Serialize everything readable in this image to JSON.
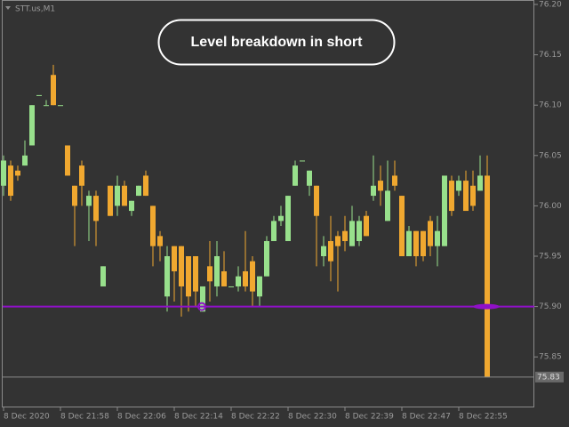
{
  "chart_data": {
    "type": "candlestick",
    "title": "STT.us,M1",
    "annotation": "Level breakdown in short",
    "categories": [
      "8 Dec 2020",
      null,
      null,
      null,
      null,
      null,
      null,
      null,
      "8 Dec 21:58",
      null,
      null,
      null,
      null,
      null,
      null,
      null,
      "8 Dec 22:06",
      null,
      null,
      null,
      null,
      null,
      null,
      null,
      "8 Dec 22:14",
      null,
      null,
      null,
      null,
      null,
      null,
      null,
      "8 Dec 22:22",
      null,
      null,
      null,
      null,
      null,
      null,
      null,
      "8 Dec 22:30",
      null,
      null,
      null,
      null,
      null,
      null,
      null,
      "8 Dec 22:39",
      null,
      null,
      null,
      null,
      null,
      null,
      null,
      "8 Dec 22:47",
      null,
      null,
      null,
      null,
      null,
      null,
      null,
      "8 Dec 22:55",
      null,
      null,
      null,
      null
    ],
    "open": [
      76.02,
      76.04,
      76.035,
      76.04,
      76.06,
      76.11,
      76.1,
      76.13,
      76.1,
      76.06,
      76.02,
      76.04,
      76.0,
      76.01,
      75.92,
      76.02,
      76.0,
      76.02,
      75.995,
      76.01,
      76.03,
      76.0,
      75.97,
      75.91,
      75.96,
      75.96,
      75.95,
      75.95,
      75.895,
      75.94,
      75.92,
      75.935,
      75.92,
      75.92,
      75.935,
      75.945,
      75.91,
      75.93,
      75.965,
      75.985,
      75.965,
      76.02,
      76.045,
      76.02,
      76.02,
      75.95,
      75.965,
      75.97,
      75.975,
      75.96,
      75.965,
      75.99,
      76.01,
      76.025,
      75.985,
      76.03,
      76.01,
      75.95,
      75.975,
      75.975,
      75.985,
      75.96,
      75.96,
      76.025,
      76.015,
      76.025,
      76.02,
      76.015,
      76.03
    ],
    "high": [
      76.05,
      76.045,
      76.04,
      76.065,
      76.1,
      76.11,
      76.105,
      76.14,
      76.1,
      76.06,
      76.02,
      76.045,
      76.015,
      76.015,
      75.94,
      76.02,
      76.03,
      76.025,
      76.005,
      76.02,
      76.035,
      76.0,
      75.975,
      75.96,
      75.96,
      75.96,
      75.95,
      75.95,
      75.92,
      75.965,
      75.965,
      75.955,
      75.92,
      75.94,
      75.975,
      75.95,
      75.93,
      75.97,
      75.99,
      76.0,
      76.01,
      76.045,
      76.045,
      76.035,
      76.02,
      75.97,
      75.99,
      75.975,
      75.99,
      76.0,
      75.99,
      75.995,
      76.05,
      76.04,
      76.045,
      76.045,
      76.01,
      75.98,
      75.975,
      75.975,
      75.99,
      75.99,
      76.03,
      76.03,
      76.03,
      76.035,
      76.035,
      76.05,
      76.05
    ],
    "low": [
      76.01,
      76.005,
      76.025,
      76.04,
      76.06,
      76.11,
      76.1,
      76.1,
      76.1,
      76.03,
      75.96,
      76.0,
      75.965,
      75.96,
      75.92,
      75.99,
      75.99,
      76.0,
      75.99,
      76.01,
      76.01,
      75.94,
      75.945,
      75.895,
      75.905,
      75.89,
      75.895,
      75.9,
      75.895,
      75.905,
      75.91,
      75.92,
      75.92,
      75.915,
      75.915,
      75.9,
      75.9,
      75.93,
      75.965,
      75.98,
      75.965,
      76.02,
      76.045,
      76.01,
      75.94,
      75.94,
      75.925,
      75.915,
      75.955,
      75.96,
      75.96,
      75.97,
      76.005,
      76.0,
      75.985,
      76.015,
      75.95,
      75.95,
      75.94,
      75.945,
      75.95,
      75.94,
      75.96,
      75.99,
      76.01,
      75.995,
      75.995,
      76.015,
      75.83
    ],
    "close": [
      76.045,
      76.01,
      76.03,
      76.05,
      76.1,
      76.11,
      76.1,
      76.1,
      76.1,
      76.03,
      76.0,
      76.02,
      76.01,
      75.985,
      75.94,
      75.99,
      76.02,
      76.0,
      76.005,
      76.02,
      76.01,
      75.96,
      75.96,
      75.95,
      75.935,
      75.92,
      75.91,
      75.915,
      75.92,
      75.925,
      75.95,
      75.92,
      75.92,
      75.93,
      75.92,
      75.915,
      75.93,
      75.965,
      75.985,
      75.99,
      76.01,
      76.04,
      76.045,
      76.035,
      75.99,
      75.96,
      75.945,
      75.96,
      75.965,
      75.985,
      75.985,
      75.97,
      76.02,
      76.015,
      76.015,
      76.02,
      75.95,
      75.975,
      75.95,
      75.95,
      75.96,
      75.975,
      76.03,
      75.995,
      76.025,
      75.995,
      76.0,
      76.03,
      75.83
    ],
    "up_color": "#98e08c",
    "down_color": "#f0a830",
    "level": 75.9,
    "level_color": "#9010c8",
    "last_price": 75.83,
    "ylim": [
      75.8,
      76.2
    ],
    "yticks": [
      {
        "value": 76.2,
        "label": "76.20"
      },
      76.15,
      {
        "value": 76.1,
        "label": "76.10"
      },
      76.05,
      {
        "value": 76.0,
        "label": "76.00"
      },
      75.95,
      {
        "value": 75.9,
        "label": "75.90"
      },
      75.85
    ]
  }
}
